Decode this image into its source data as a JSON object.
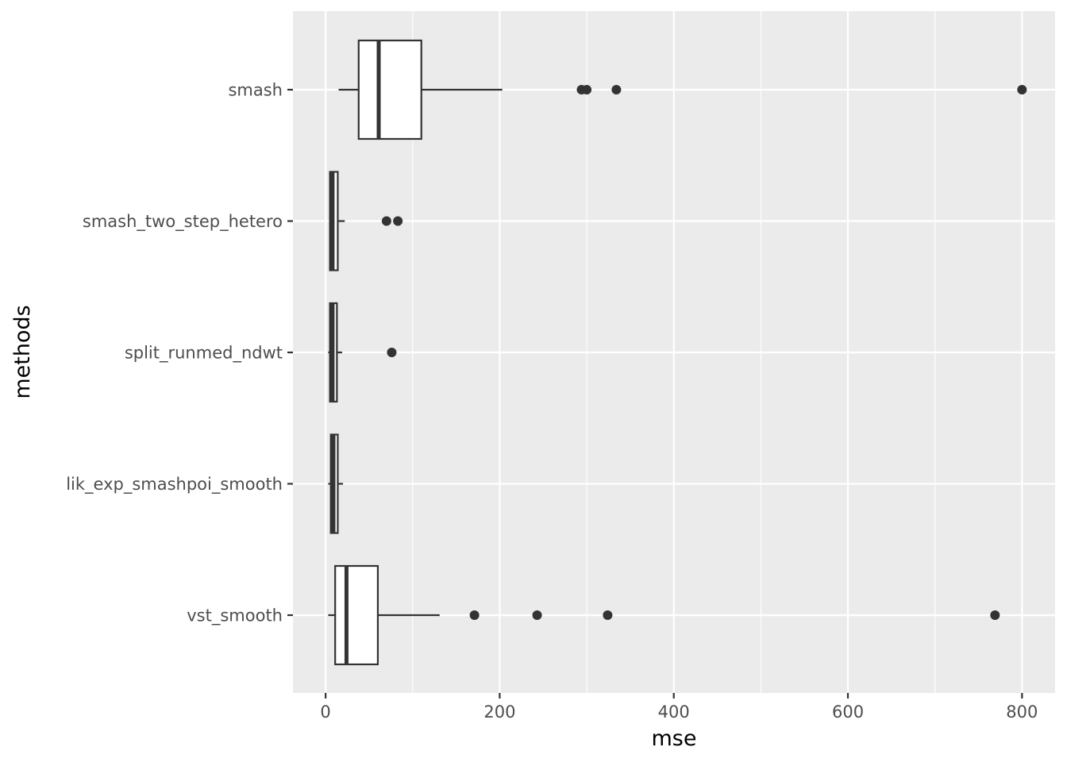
{
  "chart_data": {
    "type": "boxplot",
    "orientation": "horizontal",
    "xlabel": "mse",
    "ylabel": "methods",
    "xlim": [
      -37.5,
      838
    ],
    "x_ticks": [
      0,
      200,
      400,
      600,
      800
    ],
    "x_tick_labels": [
      "0",
      "200",
      "400",
      "600",
      "800"
    ],
    "x_minor_ticks": [
      100,
      300,
      500,
      700
    ],
    "grid": true,
    "legend": "none",
    "categories": [
      "smash",
      "smash_two_step_hetero",
      "split_runmed_ndwt",
      "lik_exp_smashpoi_smooth",
      "vst_smooth"
    ],
    "boxes": [
      {
        "category": "smash",
        "whisker_low": 15,
        "q1": 38,
        "median": 61,
        "q3": 110,
        "whisker_high": 203,
        "outliers": [
          294,
          300,
          334,
          800
        ]
      },
      {
        "category": "smash_two_step_hetero",
        "whisker_low": 4,
        "q1": 5,
        "median": 8,
        "q3": 14,
        "whisker_high": 22,
        "outliers": [
          70,
          83
        ]
      },
      {
        "category": "split_runmed_ndwt",
        "whisker_low": 3,
        "q1": 5,
        "median": 8,
        "q3": 13,
        "whisker_high": 19,
        "outliers": [
          76
        ]
      },
      {
        "category": "lik_exp_smashpoi_smooth",
        "whisker_low": 3,
        "q1": 6,
        "median": 9,
        "q3": 14,
        "whisker_high": 20,
        "outliers": []
      },
      {
        "category": "vst_smooth",
        "whisker_low": 3,
        "q1": 11,
        "median": 24,
        "q3": 60,
        "whisker_high": 131,
        "outliers": [
          171,
          243,
          324,
          769
        ]
      }
    ],
    "colors": {
      "panel_background": "#ebebeb",
      "grid_line": "#ffffff",
      "box_fill": "#ffffff",
      "box_stroke": "#333333",
      "outlier": "#333333",
      "tick_text": "#4d4d4d",
      "title_text": "#000000"
    }
  }
}
